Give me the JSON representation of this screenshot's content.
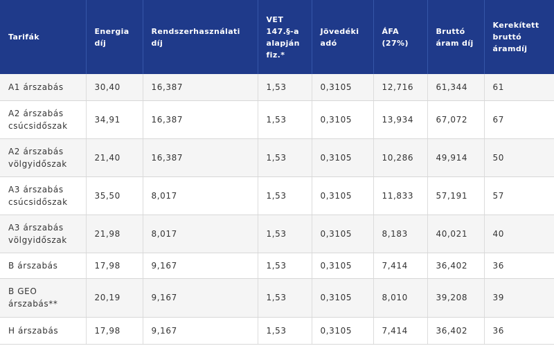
{
  "table": {
    "headers": [
      "Tarifák",
      "Energia díj",
      "Rendszerhasználati díj",
      "VET 147.§-a alapján fiz.*",
      "Jövedéki adó",
      "ÁFA (27%)",
      "Bruttó áram díj",
      "Kerekített bruttó áramdíj"
    ],
    "rows": [
      [
        "A1 árszabás",
        "30,40",
        "16,387",
        "1,53",
        "0,3105",
        "12,716",
        "61,344",
        "61"
      ],
      [
        "A2 árszabás csúcsidőszak",
        "34,91",
        "16,387",
        "1,53",
        "0,3105",
        "13,934",
        "67,072",
        "67"
      ],
      [
        "A2 árszabás völgyidőszak",
        "21,40",
        "16,387",
        "1,53",
        "0,3105",
        "10,286",
        "49,914",
        "50"
      ],
      [
        "A3 árszabás csúcsidőszak",
        "35,50",
        "8,017",
        "1,53",
        "0,3105",
        "11,833",
        "57,191",
        "57"
      ],
      [
        "A3 árszabás völgyidőszak",
        "21,98",
        "8,017",
        "1,53",
        "0,3105",
        "8,183",
        "40,021",
        "40"
      ],
      [
        "B árszabás",
        "17,98",
        "9,167",
        "1,53",
        "0,3105",
        "7,414",
        "36,402",
        "36"
      ],
      [
        "B GEO árszabás**",
        "20,19",
        "9,167",
        "1,53",
        "0,3105",
        "8,010",
        "39,208",
        "39"
      ],
      [
        "H árszabás",
        "17,98",
        "9,167",
        "1,53",
        "0,3105",
        "7,414",
        "36,402",
        "36"
      ]
    ]
  },
  "colors": {
    "header_bg": "#1f3a8a",
    "header_text": "#ffffff",
    "row_alt_bg": "#f5f5f5",
    "text": "#333333"
  }
}
